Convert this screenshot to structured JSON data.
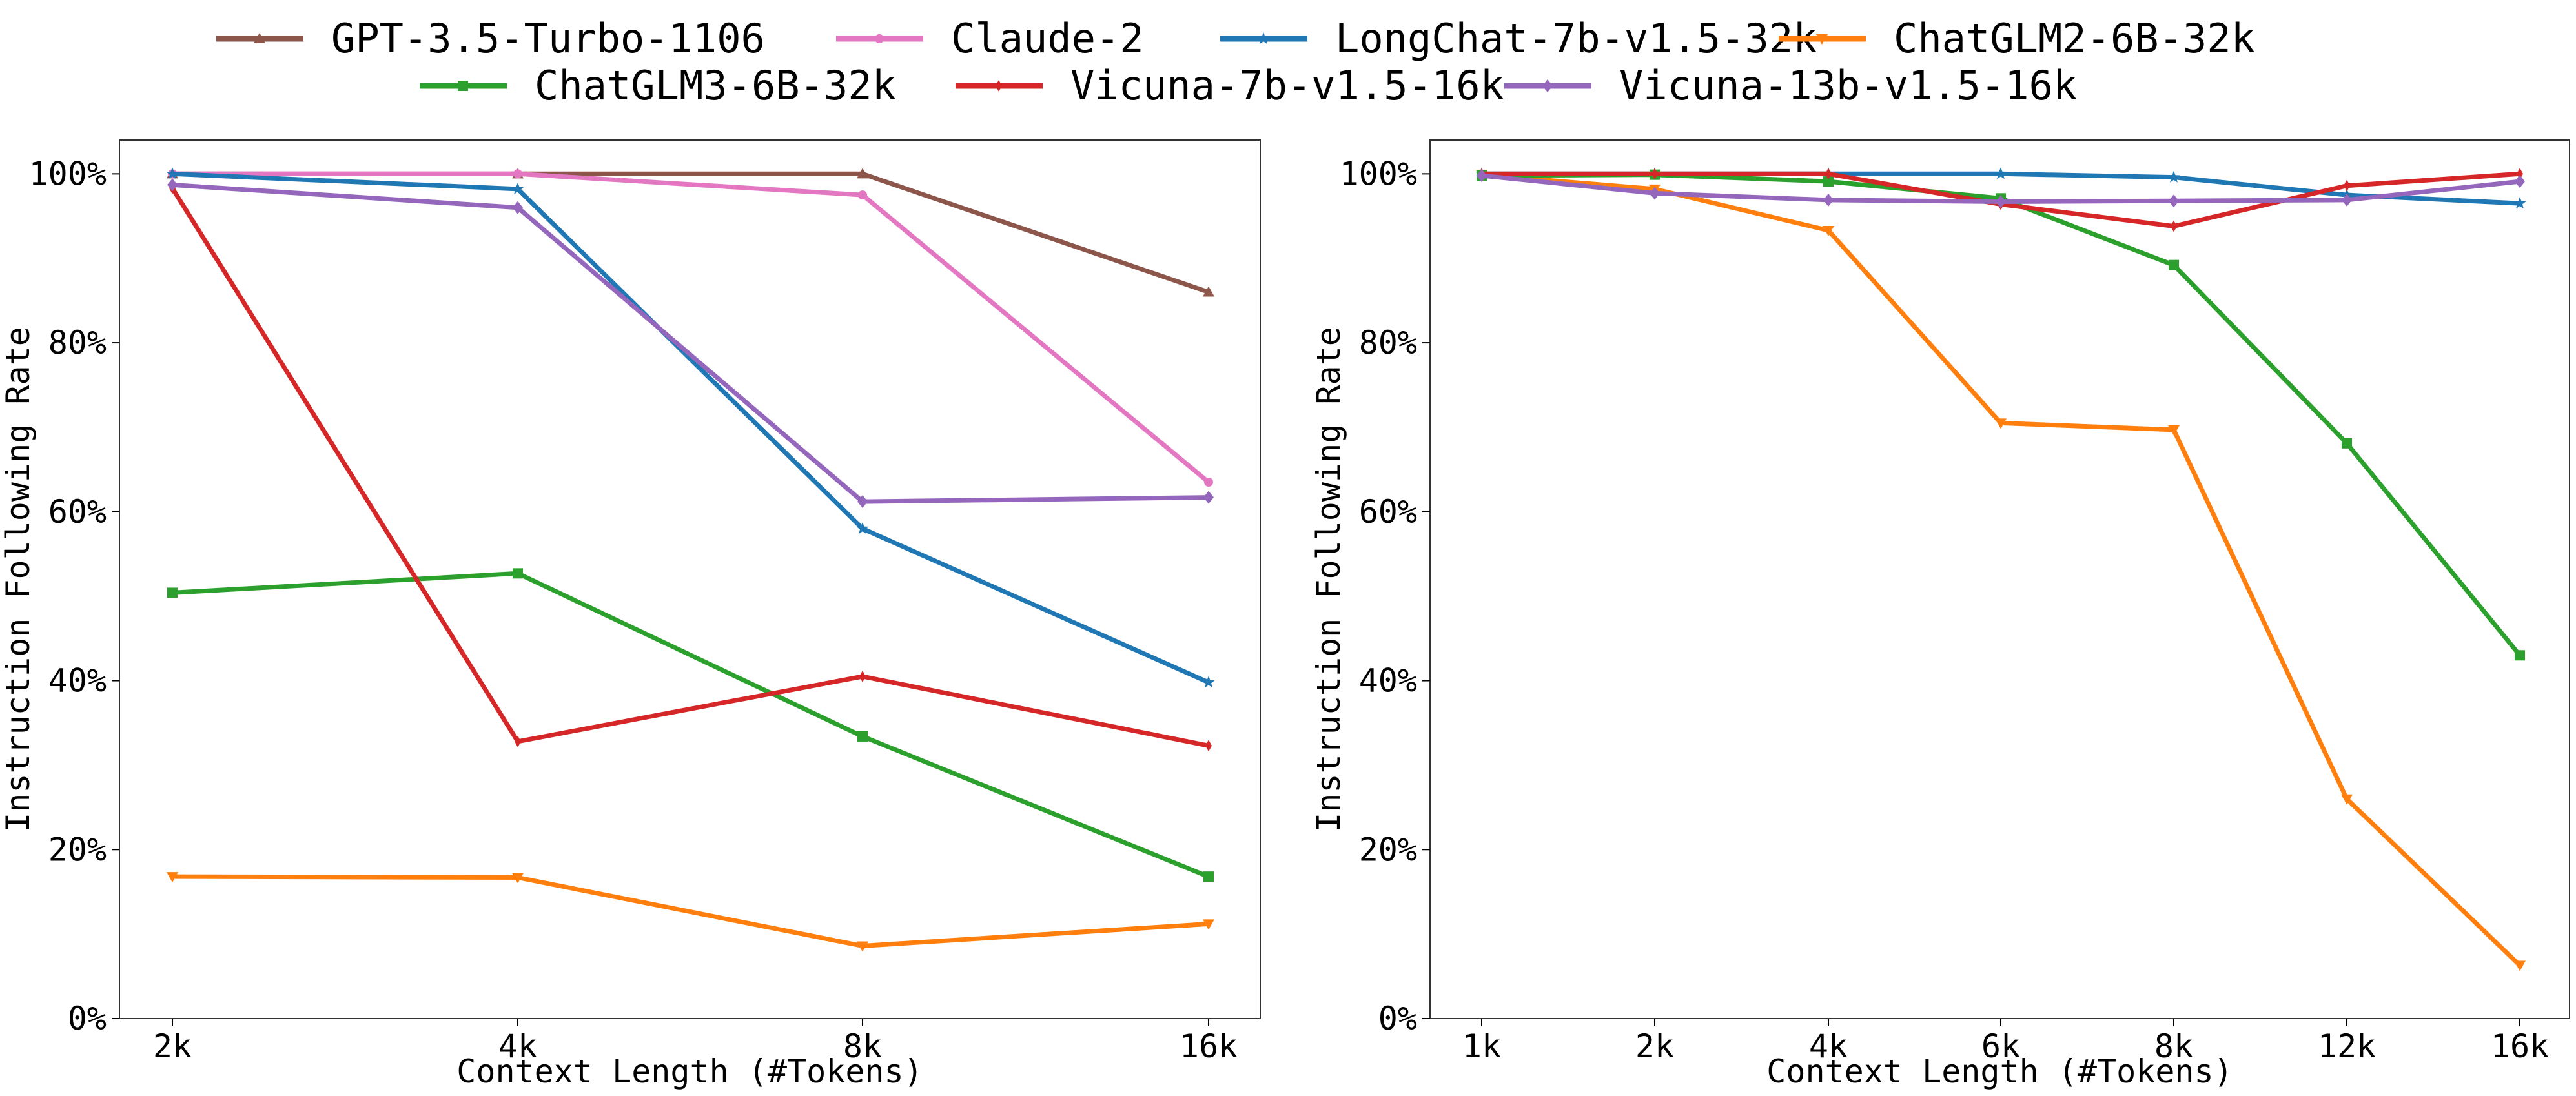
{
  "legend": [
    {
      "name": "GPT-3.5-Turbo-1106",
      "color": "#8c564b",
      "marker": "triangle"
    },
    {
      "name": "Claude-2",
      "color": "#e377c2",
      "marker": "circle"
    },
    {
      "name": "LongChat-7b-v1.5-32k",
      "color": "#1f77b4",
      "marker": "star"
    },
    {
      "name": "ChatGLM2-6B-32k",
      "color": "#ff7f0e",
      "marker": "triangle-down"
    },
    {
      "name": "ChatGLM3-6B-32k",
      "color": "#2ca02c",
      "marker": "square"
    },
    {
      "name": "Vicuna-7b-v1.5-16k",
      "color": "#d62728",
      "marker": "diamond-thin"
    },
    {
      "name": "Vicuna-13b-v1.5-16k",
      "color": "#9467bd",
      "marker": "diamond"
    }
  ],
  "chart_data": [
    {
      "type": "line",
      "xlabel": "Context Length (#Tokens)",
      "ylabel": "Instruction Following Rate",
      "categories": [
        "2k",
        "4k",
        "8k",
        "16k"
      ],
      "ylim": [
        0,
        104
      ],
      "yticks": [
        "0%",
        "20%",
        "40%",
        "60%",
        "80%",
        "100%"
      ],
      "series": [
        {
          "name": "GPT-3.5-Turbo-1106",
          "values": [
            100,
            100,
            100,
            86
          ]
        },
        {
          "name": "Claude-2",
          "values": [
            100,
            100,
            97.5,
            63.5
          ]
        },
        {
          "name": "LongChat-7b-v1.5-32k",
          "values": [
            100,
            98.2,
            58,
            39.8
          ]
        },
        {
          "name": "ChatGLM2-6B-32k",
          "values": [
            16.8,
            16.7,
            8.6,
            11.2
          ]
        },
        {
          "name": "ChatGLM3-6B-32k",
          "values": [
            50.4,
            52.7,
            33.4,
            16.8
          ]
        },
        {
          "name": "Vicuna-7b-v1.5-16k",
          "values": [
            98.3,
            32.8,
            40.5,
            32.3
          ]
        },
        {
          "name": "Vicuna-13b-v1.5-16k",
          "values": [
            98.7,
            96,
            61.2,
            61.7
          ]
        }
      ]
    },
    {
      "type": "line",
      "xlabel": "Context Length (#Tokens)",
      "ylabel": "Instruction Following Rate",
      "categories": [
        "1k",
        "2k",
        "4k",
        "6k",
        "8k",
        "12k",
        "16k"
      ],
      "ylim": [
        0,
        104
      ],
      "yticks": [
        "0%",
        "20%",
        "40%",
        "60%",
        "80%",
        "100%"
      ],
      "series": [
        {
          "name": "LongChat-7b-v1.5-32k",
          "values": [
            100,
            100,
            100,
            100,
            99.6,
            97.5,
            96.5
          ]
        },
        {
          "name": "ChatGLM2-6B-32k",
          "values": [
            99.9,
            98.2,
            93.3,
            70.5,
            69.7,
            26,
            6.3
          ]
        },
        {
          "name": "ChatGLM3-6B-32k",
          "values": [
            99.8,
            99.9,
            99.1,
            97.1,
            89.2,
            68.1,
            43
          ]
        },
        {
          "name": "Vicuna-7b-v1.5-16k",
          "values": [
            100,
            100,
            100,
            96.4,
            93.8,
            98.6,
            100
          ]
        },
        {
          "name": "Vicuna-13b-v1.5-16k",
          "values": [
            99.8,
            97.7,
            96.9,
            96.7,
            96.8,
            96.9,
            99.1
          ]
        }
      ]
    }
  ]
}
